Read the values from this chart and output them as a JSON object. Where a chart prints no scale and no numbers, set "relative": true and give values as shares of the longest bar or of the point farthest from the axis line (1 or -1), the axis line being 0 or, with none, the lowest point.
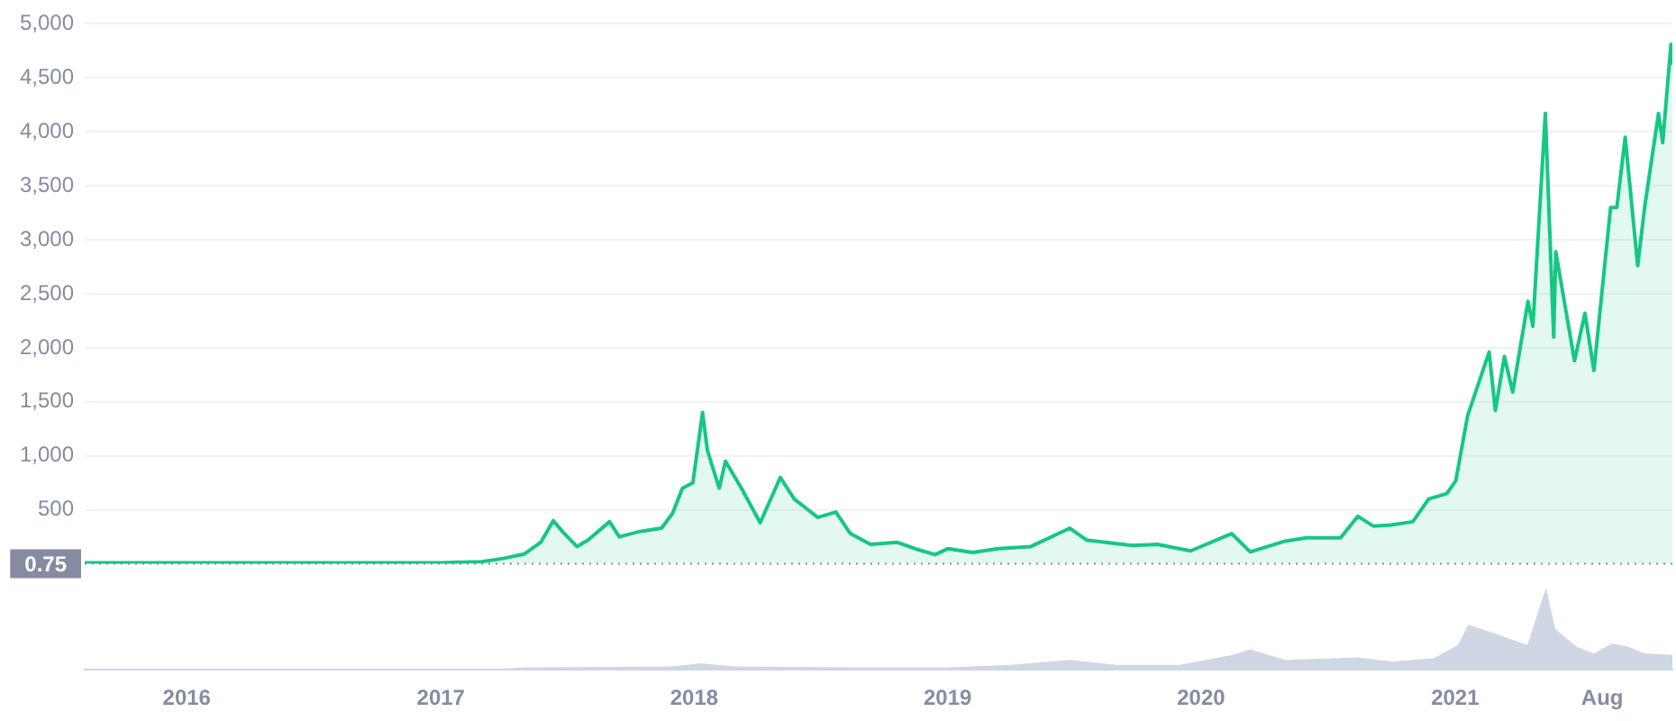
{
  "chart_data": [
    {
      "type": "area",
      "tick_labels": "y",
      "series": [
        {
          "color": "#16c784",
          "x": [
            "2015-08-07",
            "2015-10-20",
            "2016-01-01",
            "2016-02-15",
            "2016-03-13",
            "2016-06-17",
            "2016-07-20",
            "2016-10-01",
            "2017-01-01",
            "2017-03-01",
            "2017-04-01",
            "2017-05-01",
            "2017-05-25",
            "2017-06-12",
            "2017-06-25",
            "2017-07-16",
            "2017-08-01",
            "2017-09-01",
            "2017-09-15",
            "2017-10-15",
            "2017-11-15",
            "2017-12-01",
            "2017-12-15",
            "2017-12-30",
            "2018-01-13",
            "2018-01-20",
            "2018-02-06",
            "2018-02-15",
            "2018-03-10",
            "2018-04-06",
            "2018-05-05",
            "2018-05-25",
            "2018-06-10",
            "2018-06-28",
            "2018-07-24",
            "2018-08-14",
            "2018-09-12",
            "2018-10-20",
            "2018-11-20",
            "2018-12-14",
            "2019-01-01",
            "2019-02-06",
            "2019-03-15",
            "2019-05-01",
            "2019-06-26",
            "2019-07-20",
            "2019-09-24",
            "2019-10-30",
            "2019-12-17",
            "2020-02-14",
            "2020-03-12",
            "2020-05-01",
            "2020-06-01",
            "2020-07-20",
            "2020-08-14",
            "2020-09-05",
            "2020-10-01",
            "2020-11-01",
            "2020-11-24",
            "2020-12-20",
            "2021-01-02",
            "2021-01-19",
            "2021-02-19",
            "2021-02-28",
            "2021-03-13",
            "2021-03-25",
            "2021-04-16",
            "2021-04-23",
            "2021-05-11",
            "2021-05-23",
            "2021-05-26",
            "2021-06-22",
            "2021-07-07",
            "2021-07-20",
            "2021-08-13",
            "2021-08-22",
            "2021-09-03",
            "2021-09-21",
            "2021-10-01",
            "2021-10-21",
            "2021-10-27",
            "2021-11-08",
            "2021-11-10"
          ],
          "values": [
            10,
            10,
            10,
            10,
            10,
            10,
            10,
            10,
            10,
            20,
            50,
            90,
            200,
            400,
            300,
            160,
            220,
            390,
            250,
            300,
            330,
            470,
            700,
            750,
            1400,
            1050,
            700,
            950,
            700,
            380,
            800,
            600,
            520,
            430,
            480,
            280,
            180,
            200,
            130,
            85,
            140,
            105,
            140,
            160,
            330,
            220,
            170,
            180,
            120,
            280,
            110,
            210,
            240,
            240,
            440,
            350,
            360,
            390,
            600,
            650,
            770,
            1370,
            1960,
            1420,
            1920,
            1590,
            2430,
            2200,
            4170,
            2100,
            2890,
            1880,
            2320,
            1790,
            3300,
            3300,
            3950,
            2760,
            3300,
            4170,
            3900,
            4810,
            4620
          ]
        }
      ],
      "ylim": [
        0,
        5000
      ],
      "yticks": [
        {
          "value": 500,
          "label": "500"
        },
        {
          "value": 1000,
          "label": "1,000"
        },
        {
          "value": 1500,
          "label": "1,500"
        },
        {
          "value": 2000,
          "label": "2,000"
        },
        {
          "value": 2500,
          "label": "2,500"
        },
        {
          "value": 3000,
          "label": "3,000"
        },
        {
          "value": 3500,
          "label": "3,500"
        },
        {
          "value": 4000,
          "label": "4,000"
        },
        {
          "value": 4500,
          "label": "4,500"
        },
        {
          "value": 5000,
          "label": "5,000"
        }
      ],
      "xlim": [
        "2015-08-07",
        "2021-11-10"
      ],
      "ref_lines": [
        {
          "axis": "y",
          "value": 0.75,
          "label": "0.75",
          "line_style": "dotted",
          "color": "#858ca2"
        }
      ],
      "grid": "y",
      "legend": false,
      "marker": "none",
      "line_style": "solid"
    },
    {
      "type": "area",
      "relative": true,
      "tick_labels": "x",
      "series": [
        {
          "color": "#cfd6e4",
          "x": [
            "2015-08-07",
            "2017-03-01",
            "2017-05-01",
            "2017-12-01",
            "2018-01-10",
            "2018-03-01",
            "2018-09-01",
            "2019-01-01",
            "2019-04-01",
            "2019-06-26",
            "2019-09-01",
            "2019-12-01",
            "2020-02-15",
            "2020-03-12",
            "2020-05-01",
            "2020-08-15",
            "2020-10-01",
            "2020-12-01",
            "2021-01-05",
            "2021-01-20",
            "2021-02-25",
            "2021-04-15",
            "2021-05-12",
            "2021-05-25",
            "2021-06-25",
            "2021-07-20",
            "2021-08-15",
            "2021-09-08",
            "2021-10-01",
            "2021-11-10"
          ],
          "values": [
            0,
            0,
            0.03,
            0.04,
            0.08,
            0.04,
            0.03,
            0.03,
            0.06,
            0.12,
            0.06,
            0.06,
            0.18,
            0.25,
            0.12,
            0.15,
            0.1,
            0.14,
            0.3,
            0.55,
            0.45,
            0.3,
            1,
            0.5,
            0.28,
            0.2,
            0.32,
            0.28,
            0.2,
            0.18
          ]
        }
      ],
      "xlim": [
        "2015-08-07",
        "2021-11-10"
      ],
      "xticks": [
        {
          "value": "2016",
          "label": "2016"
        },
        {
          "value": "2017",
          "label": "2017"
        },
        {
          "value": "2018",
          "label": "2018"
        },
        {
          "value": "2019",
          "label": "2019"
        },
        {
          "value": "2020",
          "label": "2020"
        },
        {
          "value": "2021",
          "label": "2021"
        },
        {
          "value": "2021-08",
          "label": "Aug"
        }
      ],
      "legend": false,
      "marker": "none"
    }
  ]
}
